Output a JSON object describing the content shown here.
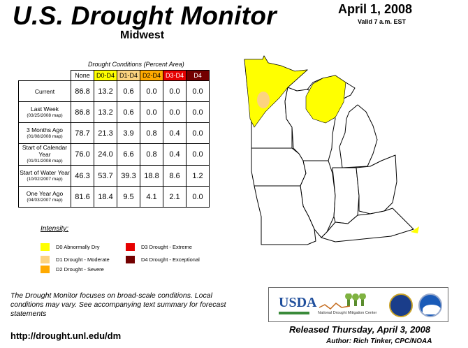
{
  "header": {
    "title": "U.S. Drought Monitor",
    "region": "Midwest",
    "date": "April 1, 2008",
    "valid": "Valid 7 a.m. EST"
  },
  "table": {
    "caption": "Drought Conditions (Percent Area)",
    "columns": [
      {
        "label": "None",
        "color": "#ffffff"
      },
      {
        "label": "D0-D4",
        "color": "#ffff00"
      },
      {
        "label": "D1-D4",
        "color": "#fcd37f"
      },
      {
        "label": "D2-D4",
        "color": "#ffaa00"
      },
      {
        "label": "D3-D4",
        "color": "#e60000"
      },
      {
        "label": "D4",
        "color": "#730000"
      }
    ],
    "rows": [
      {
        "label": "Current",
        "sub": "",
        "values": [
          "86.8",
          "13.2",
          "0.6",
          "0.0",
          "0.0",
          "0.0"
        ]
      },
      {
        "label": "Last Week",
        "sub": "(03/25/2008 map)",
        "values": [
          "86.8",
          "13.2",
          "0.6",
          "0.0",
          "0.0",
          "0.0"
        ]
      },
      {
        "label": "3 Months Ago",
        "sub": "(01/08/2008 map)",
        "values": [
          "78.7",
          "21.3",
          "3.9",
          "0.8",
          "0.4",
          "0.0"
        ]
      },
      {
        "label": "Start of Calendar Year",
        "sub": "(01/01/2008 map)",
        "values": [
          "76.0",
          "24.0",
          "6.6",
          "0.8",
          "0.4",
          "0.0"
        ]
      },
      {
        "label": "Start of Water Year",
        "sub": "(10/02/2007 map)",
        "values": [
          "46.3",
          "53.7",
          "39.3",
          "18.8",
          "8.6",
          "1.2"
        ]
      },
      {
        "label": "One Year Ago",
        "sub": "(04/03/2007 map)",
        "values": [
          "81.6",
          "18.4",
          "9.5",
          "4.1",
          "2.1",
          "0.0"
        ]
      }
    ]
  },
  "legend": {
    "title": "Intensity:",
    "items": [
      {
        "label": "D0 Abnormally Dry",
        "color": "#ffff00"
      },
      {
        "label": "D1 Drought - Moderate",
        "color": "#fcd37f"
      },
      {
        "label": "D2 Drought - Severe",
        "color": "#ffaa00"
      },
      {
        "label": "D3 Drought - Extreme",
        "color": "#e60000"
      },
      {
        "label": "D4 Drought - Exceptional",
        "color": "#730000"
      }
    ]
  },
  "footer": {
    "note": "The Drought Monitor focuses on broad-scale conditions. Local conditions may vary. See accompanying text summary for forecast statements",
    "url": "http://drought.unl.edu/dm",
    "released": "Released Thursday, April 3, 2008",
    "author": "Author: Rich Tinker, CPC/NOAA"
  },
  "logos": {
    "usda": "USDA",
    "ndmc": "National Drought Mitigation Center"
  }
}
